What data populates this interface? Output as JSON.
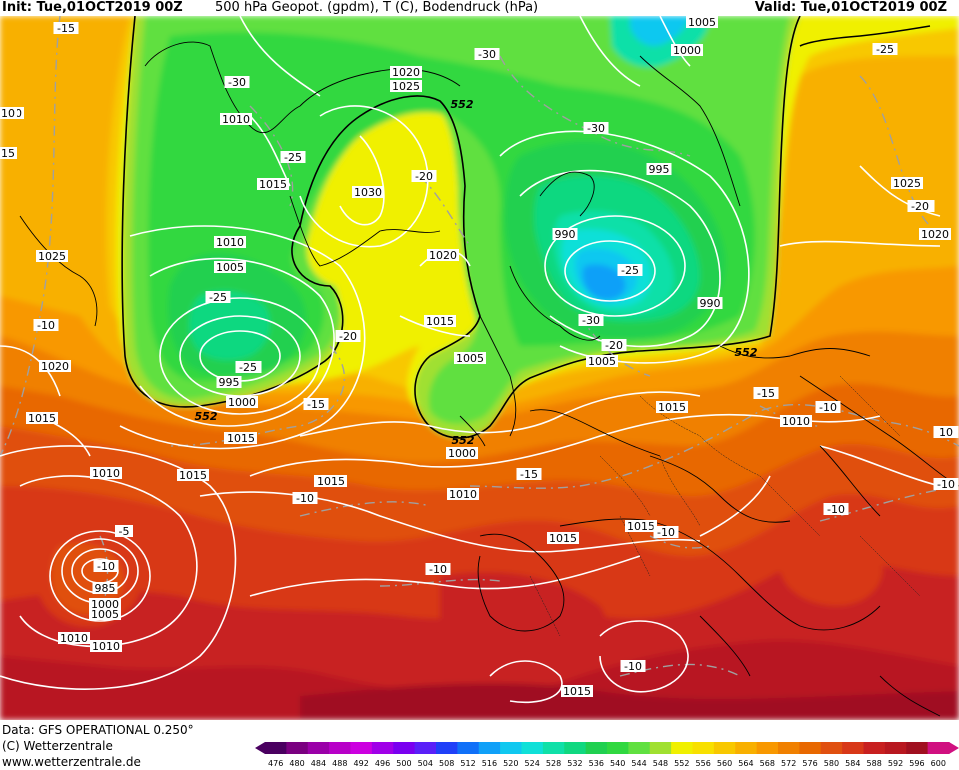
{
  "header": {
    "init": "Init: Tue,01OCT2019 00Z",
    "title": "500 hPa Geopot. (gpdm), T (C), Bodendruck (hPa)",
    "valid": "Valid: Tue,01OCT2019 00Z"
  },
  "footer": {
    "data": "Data: GFS OPERATIONAL 0.250°",
    "copyright": "(C) Wetterzentrale",
    "url": "www.wetterzentrale.de"
  },
  "colors": {
    "boundary": "#000000",
    "isobar": "#ffffff",
    "isotherm": "#a0a0a0"
  },
  "legend": {
    "values": [
      476,
      480,
      484,
      488,
      492,
      496,
      500,
      504,
      508,
      512,
      516,
      520,
      524,
      528,
      532,
      536,
      540,
      544,
      548,
      552,
      556,
      560,
      564,
      568,
      572,
      576,
      580,
      584,
      588,
      592,
      596,
      600
    ],
    "colors": [
      "#4a0060",
      "#7a0080",
      "#9a00a8",
      "#b800c8",
      "#cc00e0",
      "#a000e8",
      "#7a00f0",
      "#5a20f8",
      "#2040f8",
      "#1070f8",
      "#10a0f8",
      "#10c8f0",
      "#10e0d8",
      "#10e0a8",
      "#10d880",
      "#20d050",
      "#30d840",
      "#60e040",
      "#a0e030",
      "#f0f000",
      "#f8e000",
      "#f8c800",
      "#f8b000",
      "#f89800",
      "#f08000",
      "#e86800",
      "#e05010",
      "#d83818",
      "#c82020",
      "#b81820",
      "#a01020",
      "#d01080"
    ]
  },
  "labels": {
    "geopotential": [
      "552",
      "552",
      "552",
      "552",
      "552"
    ],
    "isobars": [
      "1005",
      "1000",
      "1020",
      "1025",
      "1010",
      "1015",
      "1030",
      "1020",
      "1015",
      "995",
      "1000",
      "1005",
      "1010",
      "1005",
      "1025",
      "1020",
      "1015",
      "1010",
      "1015",
      "1010",
      "1005",
      "1000",
      "995",
      "990",
      "990",
      "1000",
      "1005",
      "1010",
      "1015",
      "1015",
      "1010",
      "1015",
      "1010",
      "1015",
      "1020",
      "1025",
      "1010",
      "985",
      "1000",
      "1005",
      "1010",
      "1015",
      "1015"
    ],
    "isotherms": [
      "-15",
      "-30",
      "-25",
      "-25",
      "-20",
      "-25",
      "-30",
      "-30",
      "-25",
      "-20",
      "-20",
      "-25",
      "-25",
      "-30",
      "-20",
      "-15",
      "-15",
      "-10",
      "-10",
      "-10",
      "-10",
      "-10",
      "-10",
      "-10",
      "-10",
      "-10",
      "-10",
      "-15",
      "-25",
      "-20",
      "-5",
      "-5"
    ],
    "edge_partial": [
      "10",
      "15",
      "10"
    ]
  }
}
